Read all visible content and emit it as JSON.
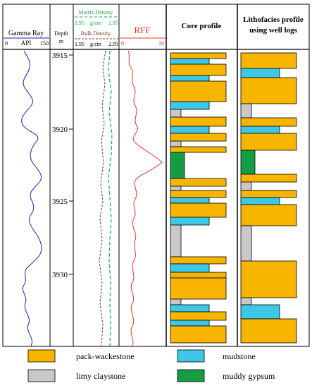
{
  "colors": {
    "gamma": "#1f1fa8",
    "matrix_density": "#19a64a",
    "bulk_density": "#7a3b2e",
    "rff": "#e8332a",
    "pack_wackestone": "#f7b500",
    "mudstone": "#3cc8e6",
    "limy_claystone": "#c8c8c8",
    "muddy_gypsum": "#159c45"
  },
  "tracks": {
    "gamma": {
      "title": "Gamma Ray",
      "unit": "API",
      "min": "0",
      "max": "150"
    },
    "depth": {
      "title": "Depth",
      "unit": "m",
      "ticks": [
        "3915",
        "3920",
        "3925",
        "3930"
      ]
    },
    "density": {
      "matrix_title": "Matrix Density",
      "matrix_min": "1.95",
      "matrix_unit": "g/cm",
      "matrix_max": "2.95",
      "bulk_title": "Bulk Density",
      "bulk_min": "1.95",
      "bulk_unit": "g/cm",
      "bulk_max": "2.95"
    },
    "rff": {
      "title": "RFF",
      "min": "0",
      "max": "10"
    }
  },
  "core_profile": {
    "title": "Core profile"
  },
  "lithofacies_profile": {
    "title_line1": "Lithofacies profile",
    "title_line2": "using well logs"
  },
  "legend": {
    "pack_wackestone": "pack-wackestone",
    "mudstone": "mudstone",
    "limy_claystone": "limy claystone",
    "muddy_gypsum": "muddy gypsum"
  }
}
